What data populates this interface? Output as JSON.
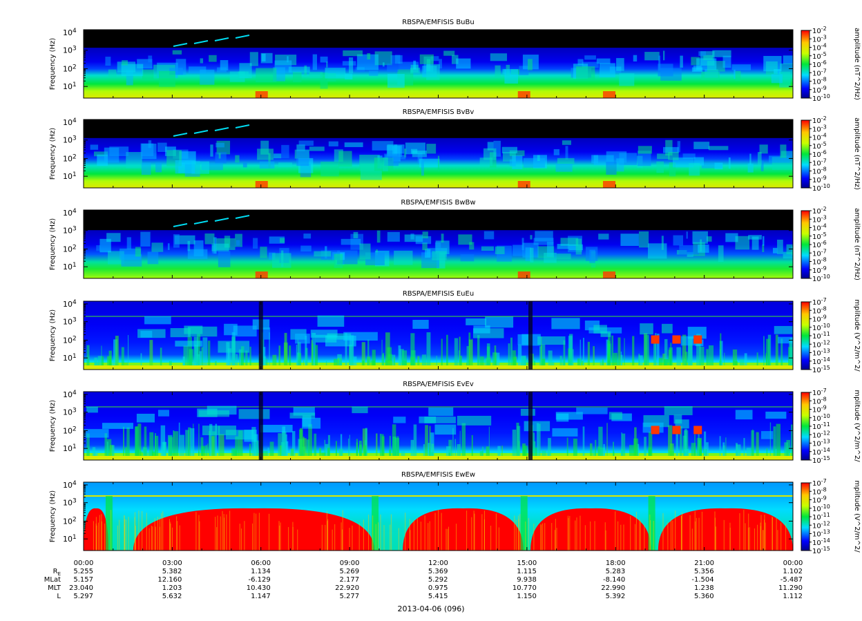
{
  "figure": {
    "date_label": "2013-04-06 (096)"
  },
  "chart_data": [
    {
      "type": "heatmap",
      "title": "RBSPA/EMFISIS  BuBu",
      "ylabel": "Frequency (Hz)",
      "yscale": "log",
      "yticks": [
        "10^1",
        "10^2",
        "10^3",
        "10^4"
      ],
      "colorbar": {
        "label": "amplitude (nT^2/Hz)",
        "scale": "log",
        "range": [
          1e-10,
          0.01
        ],
        "ticks": [
          "10^-2",
          "10^-3",
          "10^-4",
          "10^-5",
          "10^-6",
          "10^-7",
          "10^-8",
          "10^-9",
          "10^-10"
        ]
      }
    },
    {
      "type": "heatmap",
      "title": "RBSPA/EMFISIS  BvBv",
      "ylabel": "Frequency (Hz)",
      "yscale": "log",
      "yticks": [
        "10^1",
        "10^2",
        "10^3",
        "10^4"
      ],
      "colorbar": {
        "label": "amplitude (nT^2/Hz)",
        "scale": "log",
        "range": [
          1e-10,
          0.01
        ],
        "ticks": [
          "10^-2",
          "10^-3",
          "10^-4",
          "10^-5",
          "10^-6",
          "10^-7",
          "10^-8",
          "10^-9",
          "10^-10"
        ]
      }
    },
    {
      "type": "heatmap",
      "title": "RBSPA/EMFISIS  BwBw",
      "ylabel": "Frequency (Hz)",
      "yscale": "log",
      "yticks": [
        "10^1",
        "10^2",
        "10^3",
        "10^4"
      ],
      "colorbar": {
        "label": "amplitude (nT^2/Hz)",
        "scale": "log",
        "range": [
          1e-10,
          0.01
        ],
        "ticks": [
          "10^-2",
          "10^-3",
          "10^-4",
          "10^-5",
          "10^-6",
          "10^-7",
          "10^-8",
          "10^-9",
          "10^-10"
        ]
      }
    },
    {
      "type": "heatmap",
      "title": "RBSPA/EMFISIS  EuEu",
      "ylabel": "Frequency (Hz)",
      "yscale": "log",
      "yticks": [
        "10^1",
        "10^2",
        "10^3",
        "10^4"
      ],
      "colorbar": {
        "label": "mplitude (V^2/m^2/",
        "scale": "log",
        "range": [
          1e-15,
          1e-07
        ],
        "ticks": [
          "10^-7",
          "10^-8",
          "10^-9",
          "10^-10",
          "10^-11",
          "10^-12",
          "10^-13",
          "10^-14",
          "10^-15"
        ]
      }
    },
    {
      "type": "heatmap",
      "title": "RBSPA/EMFISIS  EvEv",
      "ylabel": "Frequency (Hz)",
      "yscale": "log",
      "yticks": [
        "10^1",
        "10^2",
        "10^3",
        "10^4"
      ],
      "colorbar": {
        "label": "mplitude (V^2/m^2/",
        "scale": "log",
        "range": [
          1e-15,
          1e-07
        ],
        "ticks": [
          "10^-7",
          "10^-8",
          "10^-9",
          "10^-10",
          "10^-11",
          "10^-12",
          "10^-13",
          "10^-14",
          "10^-15"
        ]
      }
    },
    {
      "type": "heatmap",
      "title": "RBSPA/EMFISIS  EwEw",
      "ylabel": "Frequency (Hz)",
      "yscale": "log",
      "yticks": [
        "10^1",
        "10^2",
        "10^3",
        "10^4"
      ],
      "colorbar": {
        "label": "mplitude (V^2/m^2/",
        "scale": "log",
        "range": [
          1e-15,
          1e-07
        ],
        "ticks": [
          "10^-7",
          "10^-8",
          "10^-9",
          "10^-10",
          "10^-11",
          "10^-12",
          "10^-13",
          "10^-14",
          "10^-15"
        ]
      }
    }
  ],
  "ephemeris": {
    "times": [
      "00:00",
      "03:00",
      "06:00",
      "09:00",
      "12:00",
      "15:00",
      "18:00",
      "21:00",
      "00:00"
    ],
    "rows": [
      {
        "label": "R",
        "subscript": "E",
        "values": [
          "5.255",
          "5.382",
          "1.134",
          "5.269",
          "5.369",
          "1.115",
          "5.283",
          "5.356",
          "1.102"
        ]
      },
      {
        "label": "MLat",
        "subscript": "",
        "values": [
          "5.157",
          "12.160",
          "-6.129",
          "2.177",
          "5.292",
          "9.938",
          "-8.140",
          "-1.504",
          "-5.487"
        ]
      },
      {
        "label": "MLT",
        "subscript": "",
        "values": [
          "23.040",
          "1.203",
          "10.430",
          "22.920",
          "0.975",
          "10.770",
          "22.990",
          "1.238",
          "11.290"
        ]
      },
      {
        "label": "L",
        "subscript": "",
        "values": [
          "5.297",
          "5.632",
          "1.147",
          "5.277",
          "5.415",
          "1.150",
          "5.392",
          "5.360",
          "1.112"
        ]
      }
    ]
  }
}
